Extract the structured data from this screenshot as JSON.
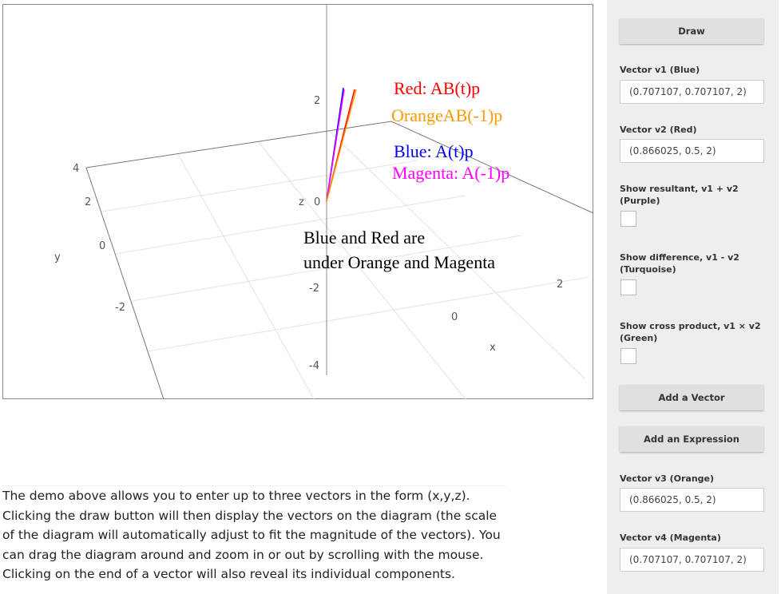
{
  "plot": {
    "axis_labels": {
      "x": "x",
      "y": "y",
      "z": "z"
    },
    "z_ticks": [
      "2",
      "0",
      "-2",
      "-4"
    ],
    "y_ticks": [
      "4",
      "2",
      "0",
      "-2"
    ],
    "x_ticks": [
      "2",
      "0"
    ],
    "annotations": [
      "Red: AB(t)p",
      "OrangeAB(-1)p",
      "Blue: A(t)p",
      "Magenta: A(-1)p",
      "Blue and Red are",
      "under Orange and Magenta"
    ]
  },
  "description": "The demo above allows you to enter up to three vectors in the form (x,y,z). Clicking the draw button will then display the vectors on the diagram (the scale of the diagram will automatically adjust to fit the magnitude of the vectors). You can drag the diagram around and zoom in or out by scrolling with the mouse. Clicking on the end of a vector will also reveal its individual components.",
  "sidebar": {
    "draw_button": "Draw",
    "v1": {
      "label": "Vector v1 (Blue)",
      "value": "(0.707107, 0.707107, 2)"
    },
    "v2": {
      "label": "Vector v2 (Red)",
      "value": "(0.866025, 0.5, 2)"
    },
    "resultant": "Show resultant, v1 + v2 (Purple)",
    "difference": "Show difference, v1 - v2 (Turquoise)",
    "cross": "Show cross product, v1 × v2 (Green)",
    "add_vector": "Add a Vector",
    "add_expression": "Add an Expression",
    "v3": {
      "label": "Vector v3 (Orange)",
      "value": "(0.866025, 0.5, 2)"
    },
    "v4": {
      "label": "Vector v4 (Magenta)",
      "value": "(0.707107, 0.707107, 2)"
    }
  }
}
